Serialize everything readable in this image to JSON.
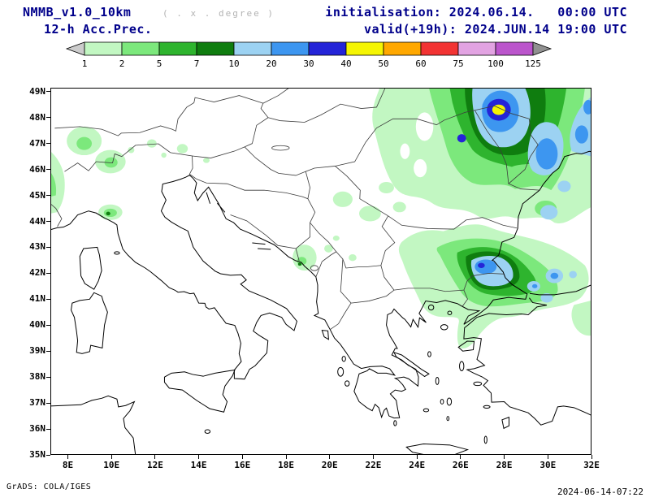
{
  "header": {
    "model": "NMMB_v1.0_10km",
    "grid_note": "( . x . degree )",
    "product": "12-h Acc.Prec.",
    "init_line": "initialisation: 2024.06.14.   00:00 UTC",
    "valid_line": "valid(+19h): 2024.JUN.14 19:00 UTC"
  },
  "colorbar": {
    "levels_mm": [
      1,
      2,
      5,
      7,
      10,
      20,
      30,
      40,
      50,
      60,
      75,
      100,
      125
    ],
    "labels": [
      "1",
      "2",
      "5",
      "7",
      "10",
      "20",
      "30",
      "40",
      "50",
      "60",
      "75",
      "100",
      "125"
    ],
    "segments": [
      "#c2f7c2",
      "#7ce87c",
      "#2eb42e",
      "#0f7d0f",
      "#9cd2f2",
      "#3d96f0",
      "#2424d8",
      "#f5f503",
      "#ffa800",
      "#f23333",
      "#e2a3e2",
      "#bb55cc"
    ],
    "under_color": "#cccccc",
    "over_color": "#919191"
  },
  "map": {
    "lat_ticks": [
      "49N",
      "48N",
      "47N",
      "46N",
      "45N",
      "44N",
      "43N",
      "42N",
      "41N",
      "40N",
      "39N",
      "38N",
      "37N",
      "36N",
      "35N"
    ],
    "lon_ticks": [
      "8E",
      "10E",
      "12E",
      "14E",
      "16E",
      "18E",
      "20E",
      "22E",
      "24E",
      "26E",
      "28E",
      "30E",
      "32E"
    ],
    "lon_range_deg": [
      8,
      32
    ],
    "lat_range_deg": [
      35,
      49
    ]
  },
  "footer": {
    "credit": "GrADS: COLA/IGES",
    "generated": "2024-06-14-07:22"
  }
}
